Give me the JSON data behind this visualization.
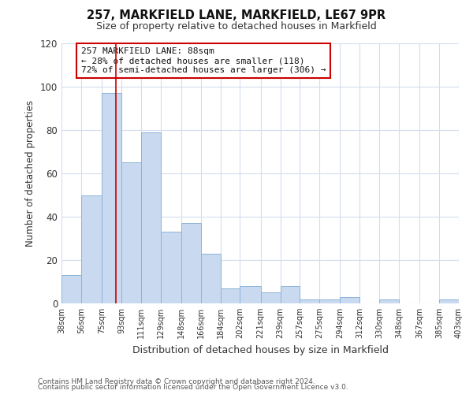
{
  "title": "257, MARKFIELD LANE, MARKFIELD, LE67 9PR",
  "subtitle": "Size of property relative to detached houses in Markfield",
  "xlabel": "Distribution of detached houses by size in Markfield",
  "ylabel": "Number of detached properties",
  "bar_edges": [
    38,
    56,
    75,
    93,
    111,
    129,
    148,
    166,
    184,
    202,
    221,
    239,
    257,
    275,
    294,
    312,
    330,
    348,
    367,
    385,
    403
  ],
  "bar_heights": [
    13,
    50,
    97,
    65,
    79,
    33,
    37,
    23,
    7,
    8,
    5,
    8,
    2,
    2,
    3,
    0,
    2,
    0,
    0,
    2
  ],
  "bar_color": "#c9d9f0",
  "bar_edgecolor": "#8cb4d8",
  "property_line_x": 88,
  "property_line_color": "#cc0000",
  "annotation_text": "257 MARKFIELD LANE: 88sqm\n← 28% of detached houses are smaller (118)\n72% of semi-detached houses are larger (306) →",
  "annotation_box_edgecolor": "#cc0000",
  "ylim": [
    0,
    120
  ],
  "yticks": [
    0,
    20,
    40,
    60,
    80,
    100,
    120
  ],
  "tick_labels": [
    "38sqm",
    "56sqm",
    "75sqm",
    "93sqm",
    "111sqm",
    "129sqm",
    "148sqm",
    "166sqm",
    "184sqm",
    "202sqm",
    "221sqm",
    "239sqm",
    "257sqm",
    "275sqm",
    "294sqm",
    "312sqm",
    "330sqm",
    "348sqm",
    "367sqm",
    "385sqm",
    "403sqm"
  ],
  "footer_line1": "Contains HM Land Registry data © Crown copyright and database right 2024.",
  "footer_line2": "Contains public sector information licensed under the Open Government Licence v3.0.",
  "background_color": "#ffffff",
  "grid_color": "#d4dded"
}
